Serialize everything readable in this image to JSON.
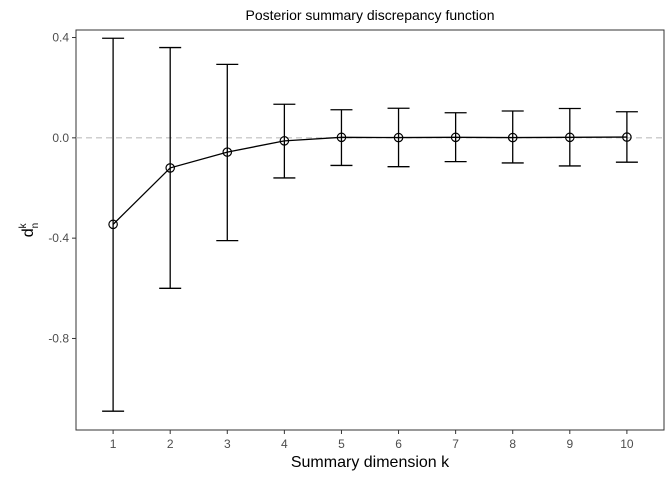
{
  "chart_data": {
    "type": "line",
    "title": "Posterior summary discrepancy function",
    "xlabel": "Summary dimension k",
    "ylabel": {
      "base": "d",
      "sup": "k",
      "sub": "n"
    },
    "x": [
      1,
      2,
      3,
      4,
      5,
      6,
      7,
      8,
      9,
      10
    ],
    "y_ticks": [
      0.4,
      0.0,
      -0.4,
      -0.8
    ],
    "y_tick_labels": [
      "0.4",
      "0.0",
      "-0.4",
      "-0.8"
    ],
    "x_tick_labels": [
      "1",
      "2",
      "3",
      "4",
      "5",
      "6",
      "7",
      "8",
      "9",
      "10"
    ],
    "ylim": [
      -1.165,
      0.43
    ],
    "xlim": [
      0.35,
      10.65
    ],
    "reference_line": 0.0,
    "series": [
      {
        "values": [
          -0.345,
          -0.12,
          -0.057,
          -0.012,
          0.002,
          0.001,
          0.002,
          0.001,
          0.002,
          0.003
        ],
        "lower": [
          -1.09,
          -0.6,
          -0.41,
          -0.16,
          -0.11,
          -0.115,
          -0.095,
          -0.1,
          -0.112,
          -0.097
        ],
        "upper": [
          0.397,
          0.36,
          0.293,
          0.134,
          0.112,
          0.118,
          0.1,
          0.107,
          0.117,
          0.104
        ]
      }
    ],
    "grid": false,
    "legend": "none",
    "colors": {
      "line": "#000000",
      "reference": "#bfbfbf",
      "panel_border": "#333333"
    }
  }
}
